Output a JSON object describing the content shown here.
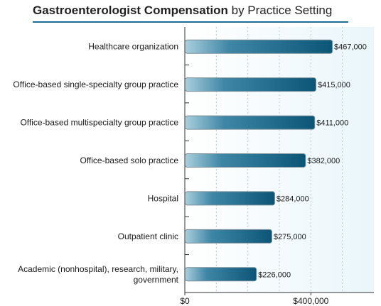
{
  "chart_data": {
    "type": "bar",
    "orientation": "horizontal",
    "title": "Gastroenterologist Compensation",
    "subtitle": "by Practice Setting",
    "categories": [
      "Healthcare organization",
      "Office-based single-specialty group practice",
      "Office-based multispecialty group practice",
      "Office-based solo practice",
      "Hospital",
      "Outpatient clinic",
      "Academic (nonhospital), research, military, government"
    ],
    "category_lines": [
      [
        "Healthcare organization"
      ],
      [
        "Office-based single-specialty group practice"
      ],
      [
        "Office-based multispecialty group practice"
      ],
      [
        "Office-based solo practice"
      ],
      [
        "Hospital"
      ],
      [
        "Outpatient clinic"
      ],
      [
        "Academic (nonhospital), research, military,",
        "government"
      ]
    ],
    "values": [
      467000,
      415000,
      411000,
      382000,
      284000,
      275000,
      226000
    ],
    "value_labels": [
      "$467,000",
      "$415,000",
      "$411,000",
      "$382,000",
      "$284,000",
      "$275,000",
      "$226,000"
    ],
    "xlim": [
      0,
      600000
    ],
    "xticks": [
      0,
      400000
    ],
    "xtick_labels": [
      "$0",
      "$400,000"
    ],
    "grid": true,
    "colors": {
      "bar_dark": "#0b5577",
      "bar_light": "#a9cfdd",
      "title_rule": "#1f6e93",
      "plot_bg": "#eaf6fb",
      "grid": "#b9c9cf",
      "axis": "#333333"
    }
  }
}
